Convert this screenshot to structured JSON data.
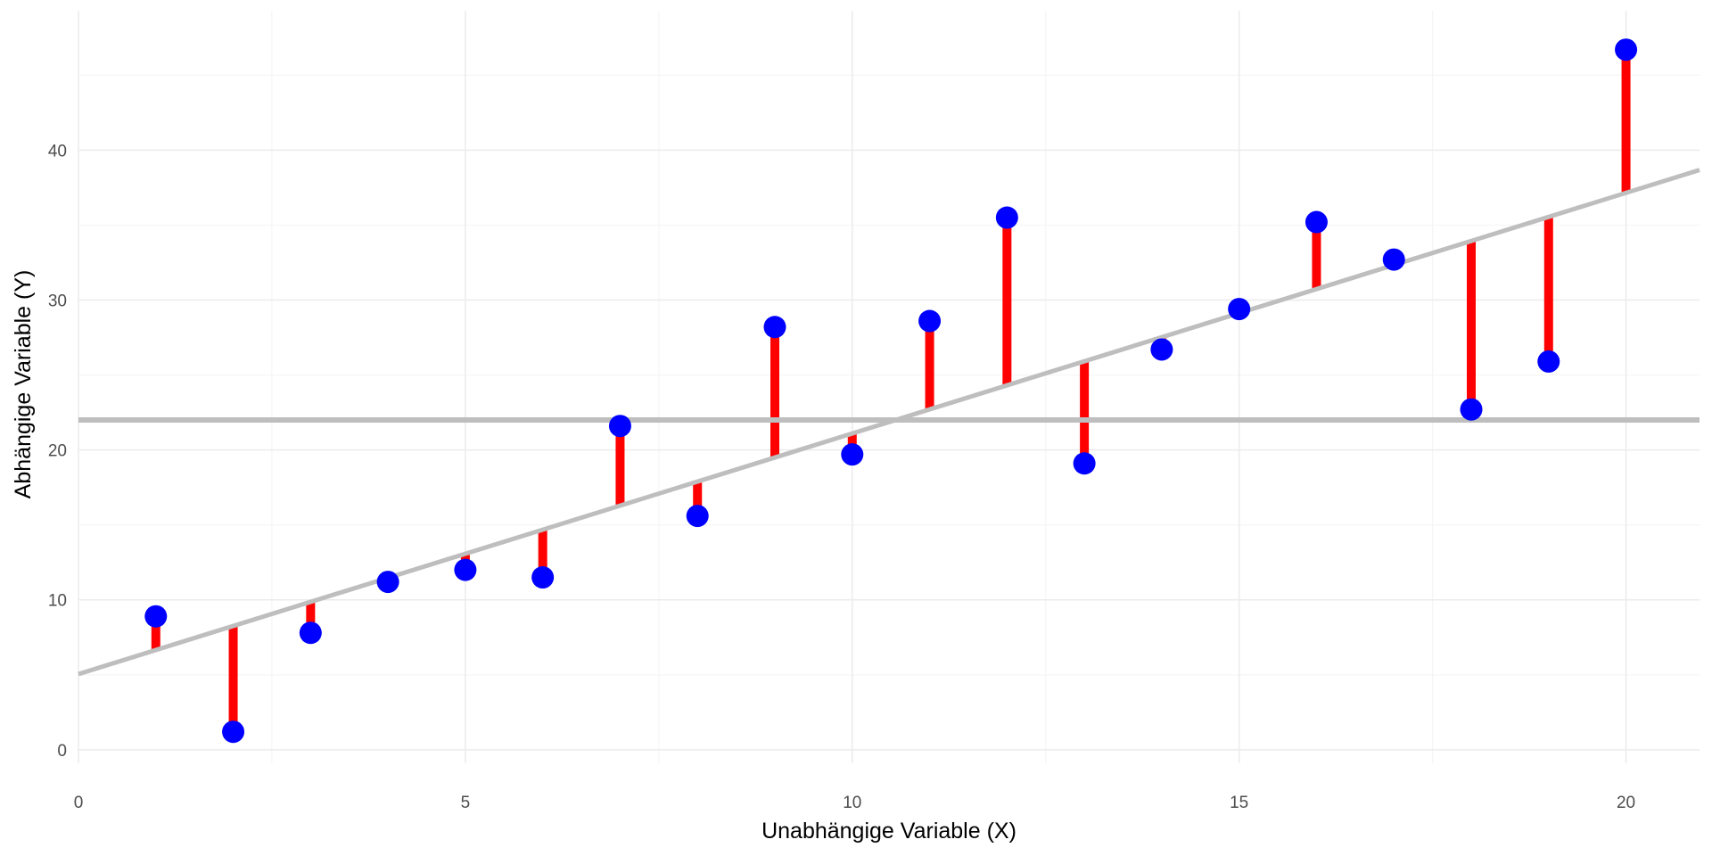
{
  "chart_data": {
    "type": "scatter",
    "title": "",
    "xlabel": "Unabhängige Variable (X)",
    "ylabel": "Abhängige Variable (Y)",
    "xlim": [
      0,
      20.95
    ],
    "ylim": [
      -0.9,
      49.3
    ],
    "x_ticks": [
      0,
      5,
      10,
      15,
      20
    ],
    "x_tick_labels": [
      "0",
      "5",
      "10",
      "15",
      "20"
    ],
    "y_ticks": [
      0,
      10,
      20,
      30,
      40
    ],
    "y_tick_labels": [
      "0",
      "10",
      "20",
      "30",
      "40"
    ],
    "grid": true,
    "legend": "none",
    "mean_y": 22.0,
    "regression": {
      "intercept": 5.05,
      "slope": 1.605
    },
    "points": {
      "x": [
        1,
        2,
        3,
        4,
        5,
        6,
        7,
        8,
        9,
        10,
        11,
        12,
        13,
        14,
        15,
        16,
        17,
        18,
        19,
        20
      ],
      "y": [
        8.9,
        1.2,
        7.8,
        11.2,
        12.0,
        11.5,
        21.6,
        15.6,
        28.2,
        19.7,
        28.6,
        35.5,
        19.1,
        26.7,
        29.4,
        35.2,
        32.7,
        22.7,
        25.9,
        46.7
      ]
    },
    "colors": {
      "points": "#0000ff",
      "residuals": "#ff0000",
      "lines": "#bebebe",
      "grid_major": "#ebebeb",
      "grid_minor": "#f5f5f5"
    }
  }
}
